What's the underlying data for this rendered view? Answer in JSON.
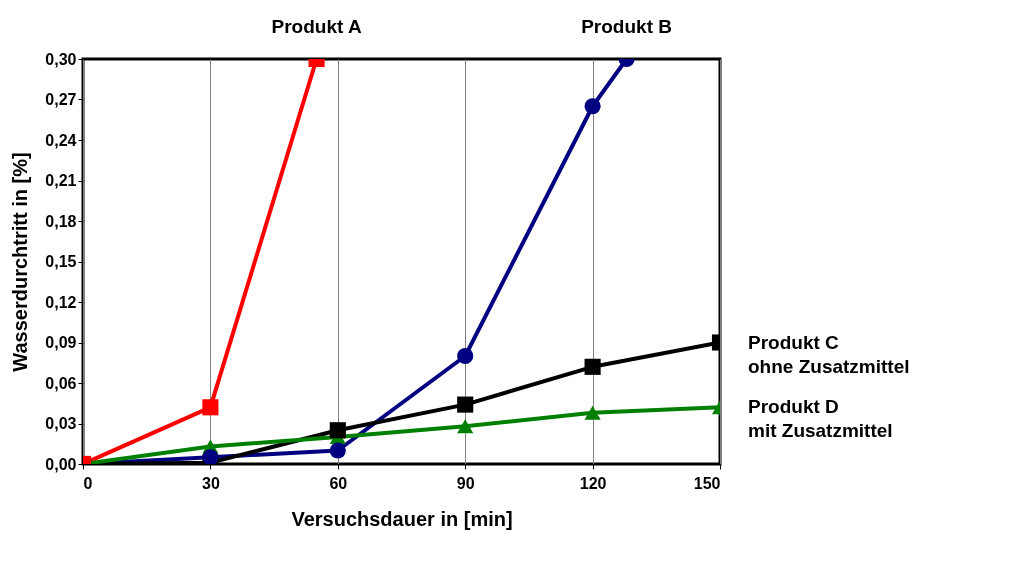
{
  "chart_data": {
    "type": "line",
    "xlabel": "Versuchsdauer in [min]",
    "ylabel": "Wasserdurchtritt in [%]",
    "xlim": [
      0,
      150
    ],
    "xticks": [
      0,
      30,
      60,
      90,
      120,
      150
    ],
    "ylim": [
      0,
      0.3
    ],
    "yticks": [
      {
        "value": 0,
        "label": "0,00"
      },
      {
        "value": 0.03,
        "label": "0,03"
      },
      {
        "value": 0.06,
        "label": "0,06"
      },
      {
        "value": 0.09,
        "label": "0,09"
      },
      {
        "value": 0.12,
        "label": "0,12"
      },
      {
        "value": 0.15,
        "label": "0,15"
      },
      {
        "value": 0.18,
        "label": "0,18"
      },
      {
        "value": 0.21,
        "label": "0,21"
      },
      {
        "value": 0.24,
        "label": "0,24"
      },
      {
        "value": 0.27,
        "label": "0,27"
      },
      {
        "value": 0.3,
        "label": "0,30"
      }
    ],
    "grid": "x",
    "series": [
      {
        "name": "Produkt  A",
        "color": "#ff0000",
        "marker": "square",
        "x": [
          0,
          30,
          55
        ],
        "values": [
          0,
          0.042,
          0.3
        ]
      },
      {
        "name": "Produkt  B",
        "color": "#000080",
        "marker": "circle",
        "x": [
          0,
          30,
          60,
          90,
          120,
          128
        ],
        "values": [
          0,
          0.005,
          0.01,
          0.08,
          0.265,
          0.3
        ]
      },
      {
        "name": "Produkt  C\nohne Zusatzmittel",
        "color": "#000000",
        "marker": "square",
        "x": [
          0,
          30,
          60,
          90,
          120,
          150
        ],
        "values": [
          0,
          0.001,
          0.025,
          0.044,
          0.072,
          0.09
        ]
      },
      {
        "name": "Produkt  D\nmit Zusatzmittel",
        "color": "#008000",
        "marker": "triangle-up",
        "x": [
          0,
          30,
          60,
          90,
          120,
          150
        ],
        "values": [
          0,
          0.013,
          0.02,
          0.028,
          0.038,
          0.042
        ]
      }
    ]
  }
}
